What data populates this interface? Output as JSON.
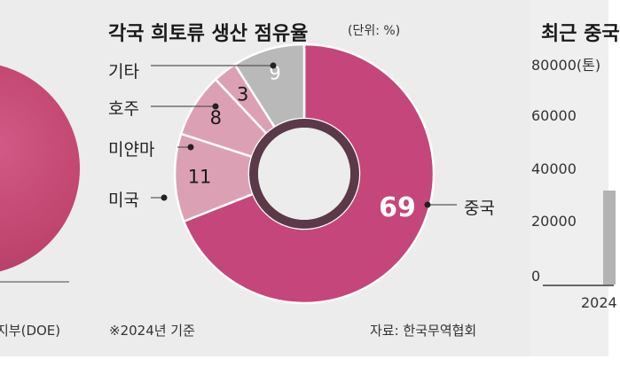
{
  "left_panel": {
    "source_partial": "지부(DOE)"
  },
  "chart_data": {
    "type": "pie",
    "title": "각국 희토류 생산 점유율",
    "unit_label": "(단위: %)",
    "slices": [
      {
        "label": "중국",
        "value": 69,
        "color": "#c5467a"
      },
      {
        "label": "미국",
        "value": 11,
        "color": "#dca0b5"
      },
      {
        "label": "미얀마",
        "value": 8,
        "color": "#dca0b5"
      },
      {
        "label": "호주",
        "value": 3,
        "color": "#dca0b5"
      },
      {
        "label": "기타",
        "value": 9,
        "color": "#b9b9b9"
      }
    ],
    "donut_ring_color": "#5a3a48",
    "note": "※2024년 기준",
    "source": "자료: 한국무역협회"
  },
  "right_panel": {
    "title_partial": "최근 중국",
    "yticks": [
      "80000(톤)",
      "60000",
      "40000",
      "20000",
      "0"
    ],
    "xtick_partial": "2024"
  }
}
